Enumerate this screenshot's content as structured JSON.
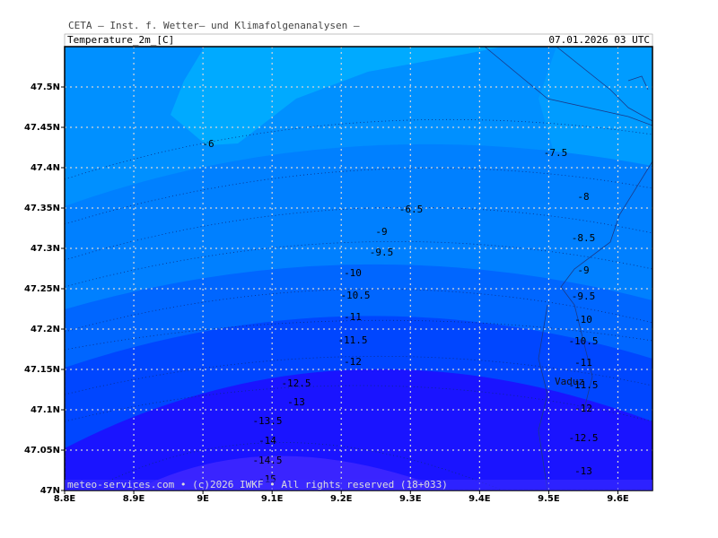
{
  "header": {
    "institute": "CETA — Inst. f. Wetter— und Klimafolgenanalysen —",
    "title": "Temperature_2m_[C]",
    "datetime": "07.01.2026  03 UTC"
  },
  "map": {
    "xlim": [
      8.8,
      9.65
    ],
    "ylim": [
      47,
      47.55
    ],
    "xticks": [
      {
        "value": 8.8,
        "label": "8.8E"
      },
      {
        "value": 8.9,
        "label": "8.9E"
      },
      {
        "value": 9,
        "label": "9E"
      },
      {
        "value": 9.1,
        "label": "9.1E"
      },
      {
        "value": 9.2,
        "label": "9.2E"
      },
      {
        "value": 9.3,
        "label": "9.3E"
      },
      {
        "value": 9.4,
        "label": "9.4E"
      },
      {
        "value": 9.5,
        "label": "9.5E"
      },
      {
        "value": 9.6,
        "label": "9.6E"
      }
    ],
    "yticks": [
      {
        "value": 47,
        "label": "47N"
      },
      {
        "value": 47.05,
        "label": "47.05N"
      },
      {
        "value": 47.1,
        "label": "47.1N"
      },
      {
        "value": 47.15,
        "label": "47.15N"
      },
      {
        "value": 47.2,
        "label": "47.2N"
      },
      {
        "value": 47.25,
        "label": "47.25N"
      },
      {
        "value": 47.3,
        "label": "47.3N"
      },
      {
        "value": 47.35,
        "label": "47.35N"
      },
      {
        "value": 47.4,
        "label": "47.4N"
      },
      {
        "value": 47.45,
        "label": "47.45N"
      },
      {
        "value": 47.5,
        "label": "47.5N"
      }
    ],
    "grid": true,
    "contour_labels": [
      "-6",
      "-7.5",
      "-6.5",
      "-8",
      "-9",
      "-8.5",
      "-9.5",
      "-9",
      "-10",
      "-9.5",
      "-10.5",
      "-10",
      "-11",
      "-10.5",
      "-11.5",
      "-11",
      "-12",
      "-11.5",
      "-12.5",
      "-12",
      "-13",
      "-13.5",
      "-12.5",
      "-14",
      "-14.5",
      "-13",
      "-15"
    ],
    "place": "Vaduz"
  },
  "footer": "meteo-services.com • (c)2026 IWKF • All rights reserved (18+033)"
}
